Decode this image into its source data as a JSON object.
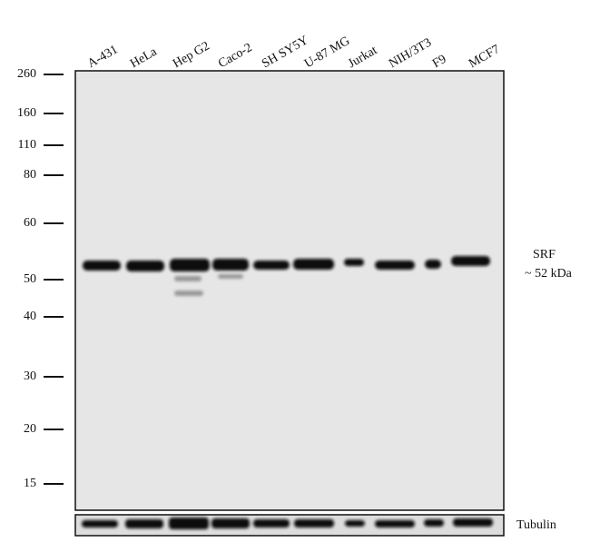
{
  "lanes": [
    "A-431",
    "HeLa",
    "Hep G2",
    "Caco-2",
    "SH SY5Y",
    "U-87 MG",
    "Jurkat",
    "NIH/3T3",
    "F9",
    "MCF7"
  ],
  "markers": [
    "260",
    "160",
    "110",
    "80",
    "60",
    "50",
    "40",
    "30",
    "20",
    "15"
  ],
  "band_label": {
    "protein": "SRF",
    "size": "~ 52  kDa"
  },
  "loading_control": "Tubulin"
}
